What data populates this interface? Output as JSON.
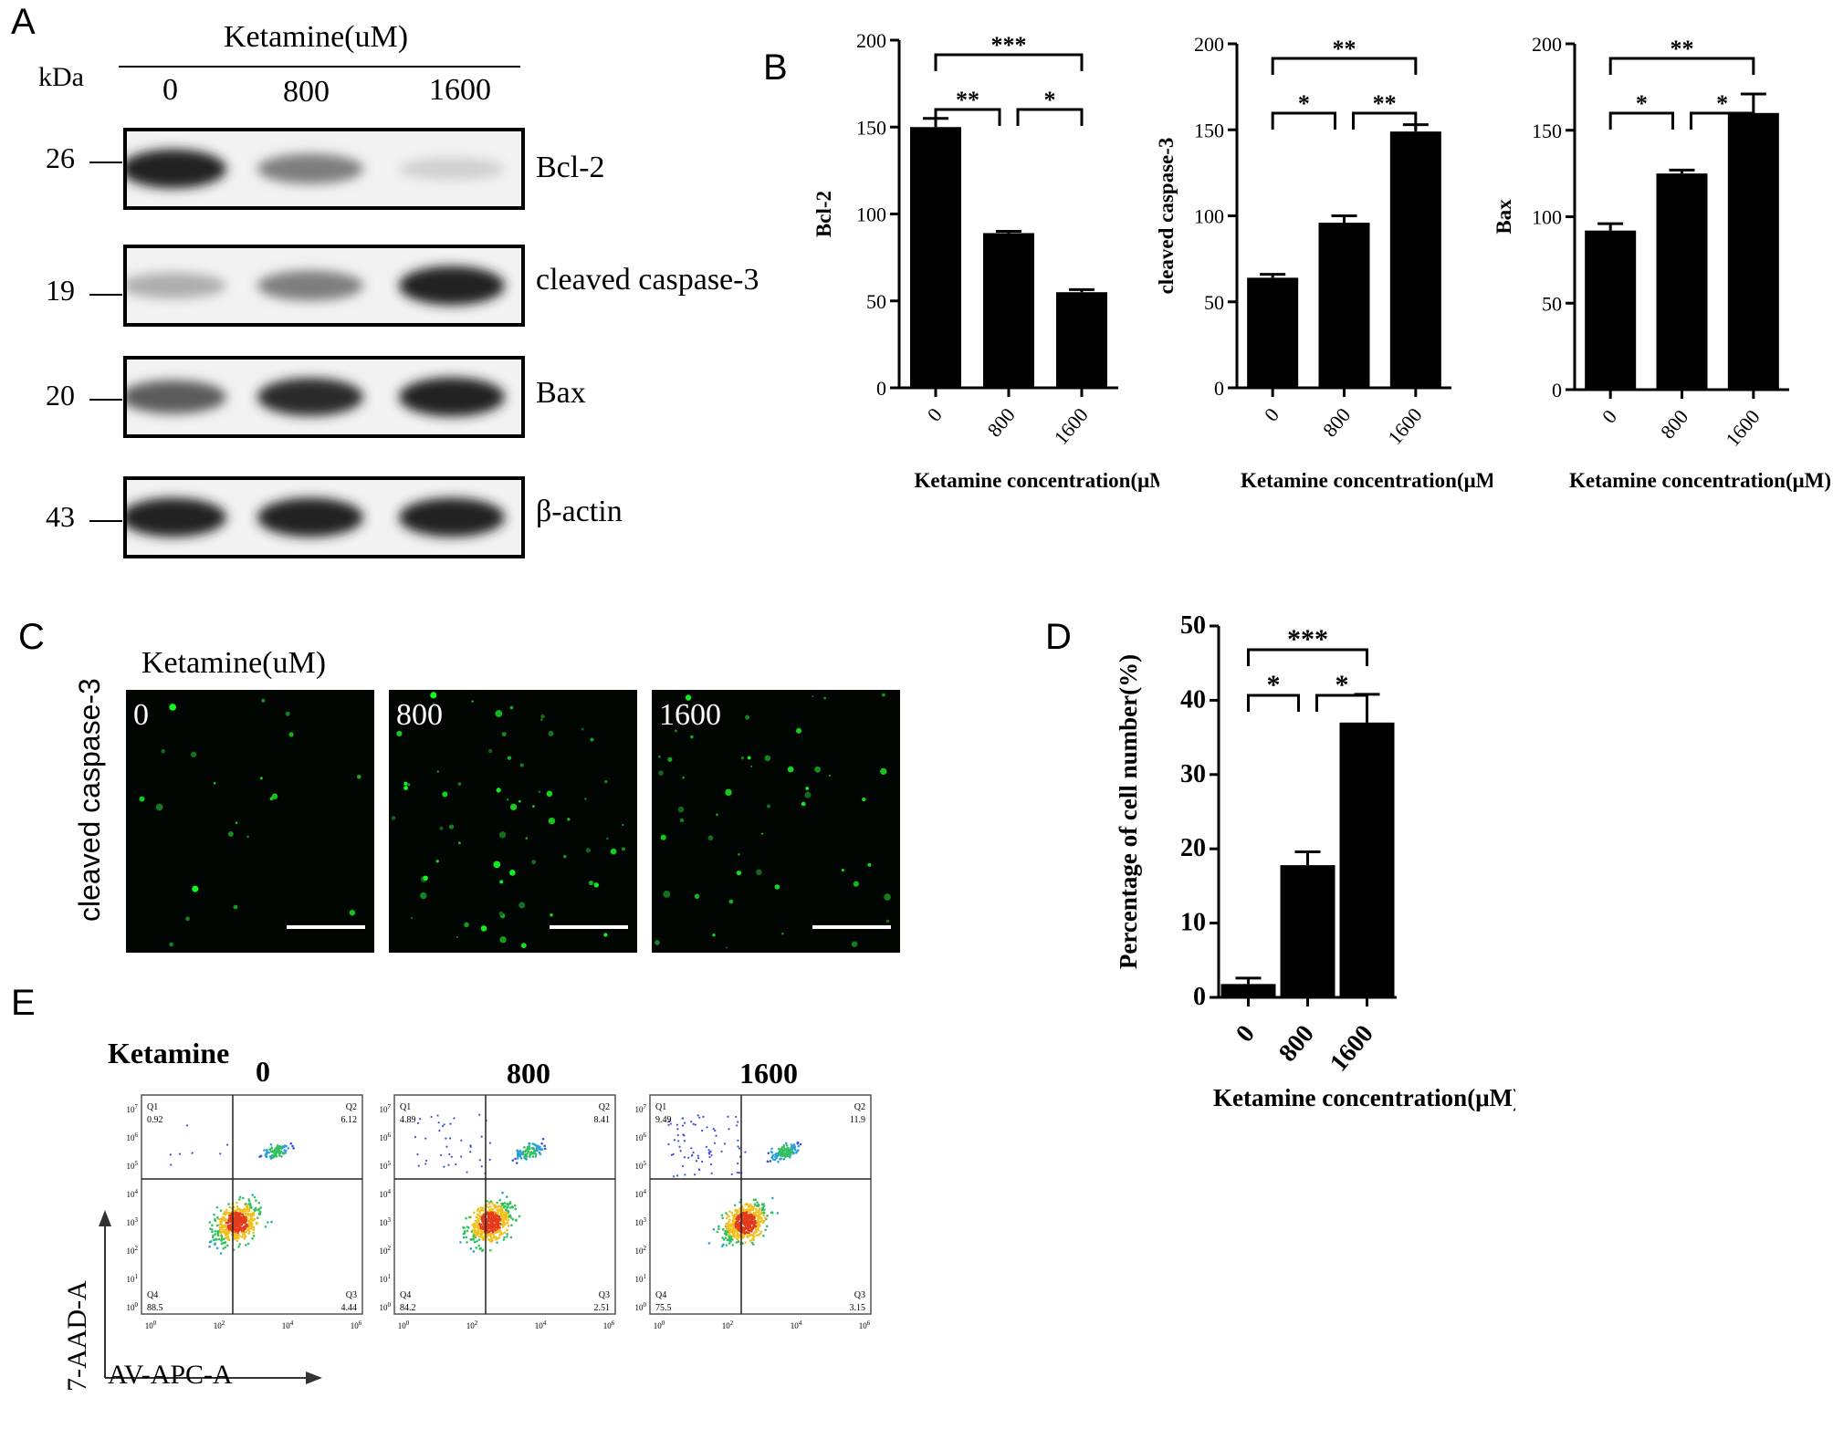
{
  "panel_letters": {
    "a": "A",
    "b": "B",
    "c": "C",
    "d": "D",
    "e": "E"
  },
  "panel_a": {
    "header": "Ketamine(uM)",
    "kda_label": "kDa",
    "lanes": [
      "0",
      "800",
      "1600"
    ],
    "blots": [
      {
        "protein": "Bcl-2",
        "kda": "26",
        "intensity": [
          0.95,
          0.55,
          0.2
        ]
      },
      {
        "protein": "cleaved caspase-3",
        "kda": "19",
        "intensity": [
          0.35,
          0.55,
          0.95
        ]
      },
      {
        "protein": "Bax",
        "kda": "20",
        "intensity": [
          0.7,
          0.9,
          0.95
        ]
      },
      {
        "protein": "β-actin",
        "kda": "43",
        "intensity": [
          0.95,
          0.95,
          0.95
        ]
      }
    ]
  },
  "chart_data": [
    {
      "id": "B1",
      "type": "bar",
      "ylabel": "Bcl-2",
      "xlabel": "Ketamine concentration(μM)",
      "categories": [
        "0",
        "800",
        "1600"
      ],
      "values": [
        150,
        89,
        55
      ],
      "errors": [
        5,
        1,
        1.5
      ],
      "ylim": [
        0,
        200
      ],
      "yticks": [
        "0",
        "50",
        "100",
        "150",
        "200"
      ],
      "significance": [
        {
          "from": 0,
          "to": 2,
          "label": "***",
          "level": 1
        },
        {
          "from": 0,
          "to": 1,
          "label": "**",
          "level": 0
        },
        {
          "from": 1,
          "to": 2,
          "label": "*",
          "level": 0
        }
      ]
    },
    {
      "id": "B2",
      "type": "bar",
      "ylabel": "cleaved caspase-3",
      "xlabel": "Ketamine concentration(μM)",
      "categories": [
        "0",
        "800",
        "1600"
      ],
      "values": [
        64,
        96,
        149
      ],
      "errors": [
        2,
        4,
        4
      ],
      "ylim": [
        0,
        200
      ],
      "yticks": [
        "0",
        "50",
        "100",
        "150",
        "200"
      ],
      "significance": [
        {
          "from": 0,
          "to": 2,
          "label": "**",
          "level": 1
        },
        {
          "from": 0,
          "to": 1,
          "label": "*",
          "level": 0
        },
        {
          "from": 1,
          "to": 2,
          "label": "**",
          "level": 0
        }
      ]
    },
    {
      "id": "B3",
      "type": "bar",
      "ylabel": "Bax",
      "xlabel": "Ketamine concentration(μM)",
      "categories": [
        "0",
        "800",
        "1600"
      ],
      "values": [
        92,
        125,
        160
      ],
      "errors": [
        4,
        2,
        11
      ],
      "ylim": [
        0,
        200
      ],
      "yticks": [
        "0",
        "50",
        "100",
        "150",
        "200"
      ],
      "significance": [
        {
          "from": 0,
          "to": 2,
          "label": "**",
          "level": 1
        },
        {
          "from": 0,
          "to": 1,
          "label": "*",
          "level": 0
        },
        {
          "from": 1,
          "to": 2,
          "label": "*",
          "level": 0
        }
      ]
    },
    {
      "id": "D",
      "type": "bar",
      "ylabel": "Percentage of cell number(%)",
      "xlabel": "Ketamine concentration(μM)",
      "categories": [
        "0",
        "800",
        "1600"
      ],
      "values": [
        1.8,
        17.8,
        37
      ],
      "errors": [
        0.8,
        1.8,
        3.8
      ],
      "ylim": [
        0,
        50
      ],
      "yticks": [
        "0",
        "10",
        "20",
        "30",
        "40",
        "50"
      ],
      "significance": [
        {
          "from": 0,
          "to": 2,
          "label": "***",
          "level": 1
        },
        {
          "from": 0,
          "to": 1,
          "label": "*",
          "level": 0
        },
        {
          "from": 1,
          "to": 2,
          "label": "*",
          "level": 0
        }
      ]
    }
  ],
  "panel_c": {
    "header": "Ketamine(uM)",
    "ylabel": "cleaved caspase-3",
    "panels": [
      {
        "label": "0",
        "density": 0.2
      },
      {
        "label": "800",
        "density": 1.0
      },
      {
        "label": "1600",
        "density": 0.7
      }
    ]
  },
  "panel_e": {
    "header": "Ketamine",
    "y_axis": "7-AAD-A",
    "x_axis": "AV-APC-A",
    "plots": [
      {
        "title": "0",
        "quadrants": {
          "Q1": "0.92",
          "Q2": "6.12",
          "Q3": "4.44",
          "Q4": "88.5"
        }
      },
      {
        "title": "800",
        "quadrants": {
          "Q1": "4.89",
          "Q2": "8.41",
          "Q3": "2.51",
          "Q4": "84.2"
        }
      },
      {
        "title": "1600",
        "quadrants": {
          "Q1": "9.49",
          "Q2": "11.9",
          "Q3": "3.15",
          "Q4": "75.5"
        }
      }
    ],
    "quadrant_names": [
      "Q1",
      "Q2",
      "Q3",
      "Q4"
    ],
    "tick_exponents": [
      "0",
      "2",
      "4",
      "6"
    ],
    "ytick_exponents": [
      "0",
      "1",
      "2",
      "3",
      "4",
      "5",
      "6",
      "7"
    ]
  }
}
